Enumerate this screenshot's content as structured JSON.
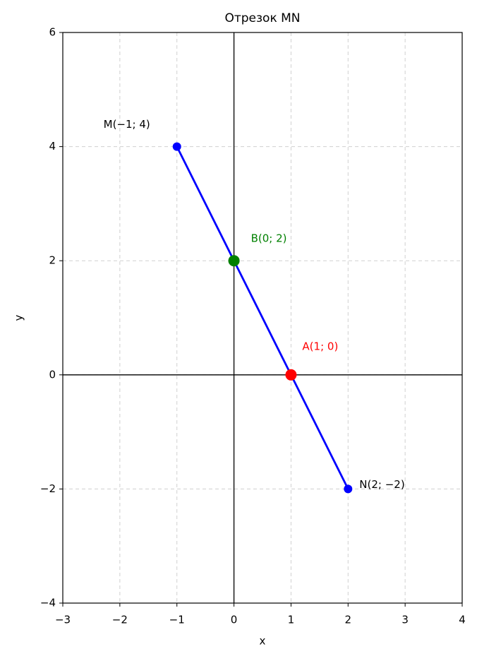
{
  "chart_data": {
    "type": "line",
    "title": "Отрезок MN",
    "xlabel": "x",
    "ylabel": "y",
    "xlim": [
      -3,
      4
    ],
    "ylim": [
      -4,
      6
    ],
    "xticks": [
      {
        "value": -3,
        "label": "−3"
      },
      {
        "value": -2,
        "label": "−2"
      },
      {
        "value": -1,
        "label": "−1"
      },
      0,
      1,
      2,
      3,
      4
    ],
    "yticks": [
      {
        "value": -4,
        "label": "−4"
      },
      {
        "value": -2,
        "label": "−2"
      },
      0,
      2,
      4,
      6
    ],
    "grid": true,
    "series": [
      {
        "color": "#0000ff",
        "x": [
          -1,
          2
        ],
        "y": [
          4,
          -2
        ],
        "labels": [
          "M(−1; 4)",
          "N(2; −2)"
        ]
      }
    ],
    "points": [
      {
        "label": "A(1; 0)",
        "x": 1,
        "y": 0,
        "color": "#ff0000"
      },
      {
        "label": "B(0; 2)",
        "x": 0,
        "y": 2,
        "color": "#008000"
      }
    ]
  }
}
